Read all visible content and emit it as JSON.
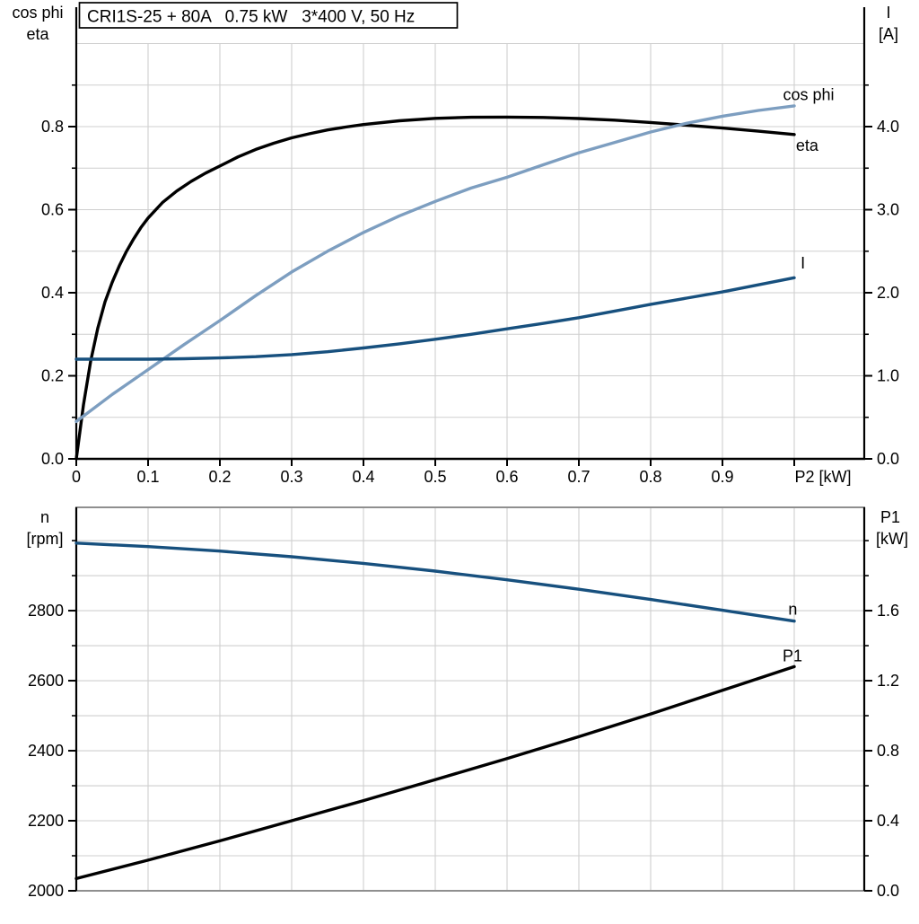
{
  "title": "CRI1S-25 + 80A   0.75 kW   3*400 V, 50 Hz",
  "colors": {
    "black": "#000000",
    "dark_blue": "#17507e",
    "light_blue": "#7d9ec0",
    "grid": "#cfcfcf",
    "frame_gray": "#8f8f8f"
  },
  "chart_data": [
    {
      "id": "electrical",
      "type": "line",
      "x_axis": {
        "label": "P2 [kW]",
        "min": 0,
        "max": 1.0975,
        "tick_values": [
          0,
          0.1,
          0.2,
          0.3,
          0.4,
          0.5,
          0.6,
          0.7,
          0.8,
          0.9,
          1.0
        ],
        "tick_labels": [
          "0",
          "0.1",
          "0.2",
          "0.3",
          "0.4",
          "0.5",
          "0.6",
          "0.7",
          "0.8",
          "0.9",
          ""
        ],
        "grid_values": [
          0.1,
          0.2,
          0.3,
          0.4,
          0.5,
          0.6,
          0.7,
          0.8,
          0.9,
          1.0
        ]
      },
      "y_left": {
        "header_lines": [
          "cos phi",
          "eta"
        ],
        "min": 0,
        "max": 1.0,
        "major_ticks": [
          0,
          0.2,
          0.4,
          0.6,
          0.8
        ],
        "major_labels": [
          "0.0",
          "0.2",
          "0.4",
          "0.6",
          "0.8"
        ],
        "minor_ticks": [
          0.1,
          0.3,
          0.5,
          0.7,
          0.9
        ],
        "grid_values": [
          0.1,
          0.2,
          0.3,
          0.4,
          0.5,
          0.6,
          0.7,
          0.8,
          0.9,
          1.0
        ]
      },
      "y_right": {
        "header_lines": [
          "I",
          "[A]"
        ],
        "min": 0,
        "max": 5.0,
        "major_ticks": [
          0,
          1,
          2,
          3,
          4
        ],
        "major_labels": [
          "0.0",
          "1.0",
          "2.0",
          "3.0",
          "4.0"
        ],
        "minor_ticks": [
          0.5,
          1.5,
          2.5,
          3.5,
          4.5
        ]
      },
      "series": [
        {
          "name": "eta",
          "axis": "left",
          "color_key": "black",
          "label": "eta",
          "label_at": [
            1.018,
            0.742
          ],
          "points": [
            [
              0,
              0
            ],
            [
              0.01,
              0.13
            ],
            [
              0.02,
              0.235
            ],
            [
              0.03,
              0.315
            ],
            [
              0.04,
              0.378
            ],
            [
              0.05,
              0.425
            ],
            [
              0.06,
              0.465
            ],
            [
              0.07,
              0.5
            ],
            [
              0.08,
              0.53
            ],
            [
              0.09,
              0.557
            ],
            [
              0.1,
              0.58
            ],
            [
              0.12,
              0.617
            ],
            [
              0.14,
              0.645
            ],
            [
              0.16,
              0.668
            ],
            [
              0.18,
              0.688
            ],
            [
              0.2,
              0.705
            ],
            [
              0.225,
              0.727
            ],
            [
              0.25,
              0.745
            ],
            [
              0.275,
              0.76
            ],
            [
              0.3,
              0.773
            ],
            [
              0.325,
              0.783
            ],
            [
              0.35,
              0.792
            ],
            [
              0.375,
              0.799
            ],
            [
              0.4,
              0.805
            ],
            [
              0.45,
              0.814
            ],
            [
              0.5,
              0.82
            ],
            [
              0.55,
              0.8225
            ],
            [
              0.6,
              0.823
            ],
            [
              0.65,
              0.822
            ],
            [
              0.7,
              0.8195
            ],
            [
              0.75,
              0.8155
            ],
            [
              0.8,
              0.81
            ],
            [
              0.85,
              0.8035
            ],
            [
              0.9,
              0.7965
            ],
            [
              0.95,
              0.789
            ],
            [
              1,
              0.781
            ]
          ]
        },
        {
          "name": "cos phi",
          "axis": "left",
          "color_key": "light_blue",
          "label": "cos phi",
          "label_at": [
            1.02,
            0.864
          ],
          "points": [
            [
              0,
              0.09
            ],
            [
              0.05,
              0.155
            ],
            [
              0.1,
              0.215
            ],
            [
              0.15,
              0.275
            ],
            [
              0.2,
              0.333
            ],
            [
              0.25,
              0.393
            ],
            [
              0.3,
              0.45
            ],
            [
              0.35,
              0.5
            ],
            [
              0.4,
              0.545
            ],
            [
              0.45,
              0.585
            ],
            [
              0.5,
              0.62
            ],
            [
              0.55,
              0.652
            ],
            [
              0.6,
              0.678
            ],
            [
              0.65,
              0.708
            ],
            [
              0.7,
              0.737
            ],
            [
              0.75,
              0.762
            ],
            [
              0.8,
              0.787
            ],
            [
              0.85,
              0.808
            ],
            [
              0.9,
              0.825
            ],
            [
              0.95,
              0.839
            ],
            [
              1,
              0.85
            ]
          ]
        },
        {
          "name": "I",
          "axis": "right",
          "color_key": "dark_blue",
          "label": "I",
          "label_at": [
            1.012,
            2.29
          ],
          "points": [
            [
              0,
              1.2
            ],
            [
              0.1,
              1.2
            ],
            [
              0.15,
              1.205
            ],
            [
              0.2,
              1.215
            ],
            [
              0.25,
              1.23
            ],
            [
              0.3,
              1.255
            ],
            [
              0.35,
              1.29
            ],
            [
              0.4,
              1.335
            ],
            [
              0.45,
              1.385
            ],
            [
              0.5,
              1.44
            ],
            [
              0.55,
              1.5
            ],
            [
              0.6,
              1.565
            ],
            [
              0.65,
              1.63
            ],
            [
              0.7,
              1.7
            ],
            [
              0.75,
              1.78
            ],
            [
              0.8,
              1.86
            ],
            [
              0.85,
              1.935
            ],
            [
              0.9,
              2.01
            ],
            [
              0.95,
              2.095
            ],
            [
              1,
              2.18
            ]
          ]
        }
      ]
    },
    {
      "id": "mechanical",
      "type": "line",
      "x_axis": {
        "label": "",
        "min": 0,
        "max": 1.0975,
        "tick_values": [],
        "tick_labels": [],
        "grid_values": [
          0.1,
          0.2,
          0.3,
          0.4,
          0.5,
          0.6,
          0.7,
          0.8,
          0.9,
          1.0
        ]
      },
      "y_left": {
        "header_lines": [
          "n",
          "[rpm]"
        ],
        "min": 2000,
        "max": 3095,
        "major_ticks": [
          2000,
          2200,
          2400,
          2600,
          2800
        ],
        "major_labels": [
          "2000",
          "2200",
          "2400",
          "2600",
          "2800"
        ],
        "minor_ticks": [
          2100,
          2300,
          2500,
          2700,
          2900,
          3000
        ],
        "grid_values": [
          2100,
          2200,
          2300,
          2400,
          2500,
          2600,
          2700,
          2800,
          2900,
          3000
        ]
      },
      "y_right": {
        "header_lines": [
          "P1",
          "[kW]"
        ],
        "min": 0,
        "max": 2.19,
        "major_ticks": [
          0,
          0.4,
          0.8,
          1.2,
          1.6
        ],
        "major_labels": [
          "0.0",
          "0.4",
          "0.8",
          "1.2",
          "1.6"
        ],
        "minor_ticks": [
          0.2,
          0.6,
          1.0,
          1.4,
          1.8,
          2.0
        ]
      },
      "series": [
        {
          "name": "n",
          "axis": "left",
          "color_key": "dark_blue",
          "label": "n",
          "label_at": [
            0.998,
            2788
          ],
          "points": [
            [
              0,
              2993
            ],
            [
              0.1,
              2983
            ],
            [
              0.2,
              2970
            ],
            [
              0.3,
              2954
            ],
            [
              0.4,
              2935
            ],
            [
              0.5,
              2913
            ],
            [
              0.6,
              2888
            ],
            [
              0.7,
              2861
            ],
            [
              0.8,
              2832
            ],
            [
              0.9,
              2801
            ],
            [
              1,
              2770
            ]
          ]
        },
        {
          "name": "P1",
          "axis": "right",
          "color_key": "black",
          "label": "P1",
          "label_at": [
            0.9975,
            1.31
          ],
          "points": [
            [
              0,
              0.07
            ],
            [
              0.1,
              0.175
            ],
            [
              0.2,
              0.285
            ],
            [
              0.3,
              0.4
            ],
            [
              0.4,
              0.515
            ],
            [
              0.5,
              0.635
            ],
            [
              0.6,
              0.755
            ],
            [
              0.7,
              0.88
            ],
            [
              0.8,
              1.01
            ],
            [
              0.9,
              1.145
            ],
            [
              1,
              1.28
            ]
          ]
        }
      ]
    }
  ]
}
